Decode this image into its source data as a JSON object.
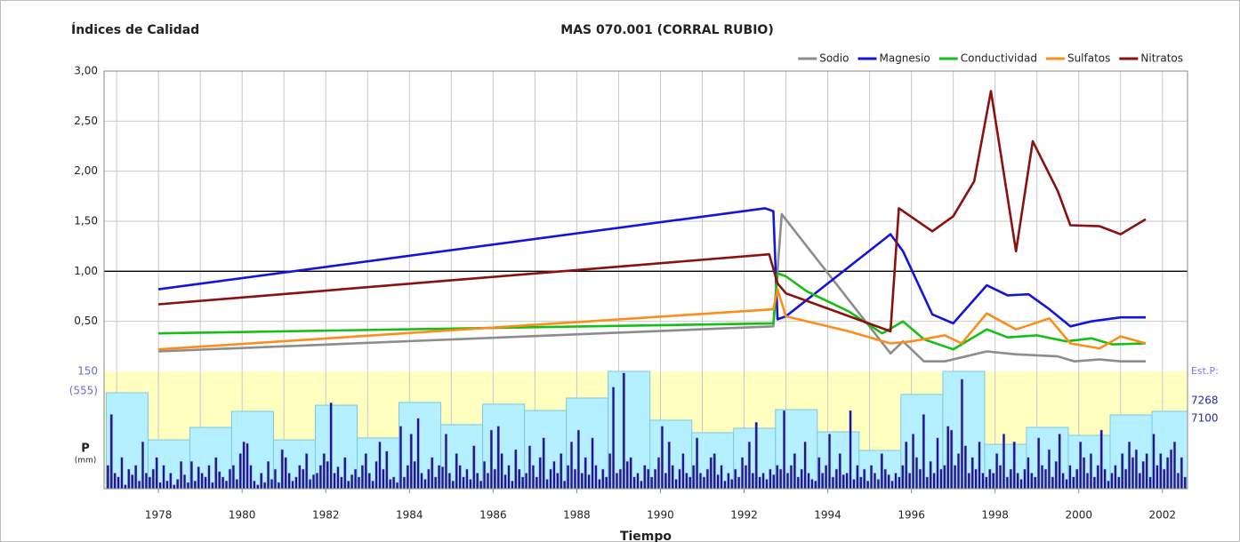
{
  "chart_data": {
    "type": "line",
    "left_title": "Índices de Calidad",
    "title": "MAS 070.001 (CORRAL RUBIO)",
    "x_label": "Tiempo",
    "xlim": [
      1976.7,
      2002.6
    ],
    "xticks": [
      1978,
      1980,
      1982,
      1984,
      1986,
      1988,
      1990,
      1992,
      1994,
      1996,
      1998,
      2000,
      2002
    ],
    "minor_xticks": [
      1977,
      1978,
      1979,
      1980,
      1981,
      1982,
      1983,
      1984,
      1985,
      1986,
      1987,
      1988,
      1989,
      1990,
      1991,
      1992,
      1993,
      1994,
      1995,
      1996,
      1997,
      1998,
      1999,
      2000,
      2001,
      2002
    ],
    "ylim": [
      0,
      3
    ],
    "yticks": [
      {
        "value": 0.5,
        "label": "0,50"
      },
      {
        "value": 1.0,
        "label": "1,00"
      },
      {
        "value": 1.5,
        "label": "1,50"
      },
      {
        "value": 2.0,
        "label": "2,00"
      },
      {
        "value": 2.5,
        "label": "2,50"
      },
      {
        "value": 3.0,
        "label": "3,00"
      }
    ],
    "reference_line": 1.0,
    "grid": true,
    "legend": "top-right",
    "series": [
      {
        "name": "Sodio",
        "color": "#8c8c8c",
        "x": [
          1978.0,
          1992.7,
          1992.9,
          1995.5,
          1995.8,
          1996.3,
          1996.8,
          1997.8,
          1998.5,
          1999.5,
          1999.9,
          2000.5,
          2001.0,
          2001.6
        ],
        "values": [
          0.2,
          0.45,
          1.57,
          0.18,
          0.3,
          0.1,
          0.1,
          0.2,
          0.17,
          0.15,
          0.1,
          0.12,
          0.1,
          0.1
        ]
      },
      {
        "name": "Magnesio",
        "color": "#1414e0",
        "x": [
          1978.0,
          1992.5,
          1992.7,
          1992.8,
          1993.0,
          1995.5,
          1995.8,
          1996.5,
          1997.0,
          1997.8,
          1998.3,
          1998.8,
          1999.3,
          1999.8,
          2000.3,
          2001.0,
          2001.6
        ],
        "values": [
          0.82,
          1.63,
          1.6,
          0.52,
          0.55,
          1.37,
          1.2,
          0.57,
          0.48,
          0.86,
          0.76,
          0.77,
          0.62,
          0.45,
          0.5,
          0.54,
          0.54
        ]
      },
      {
        "name": "Conductividad",
        "color": "#14c014",
        "x": [
          1978.0,
          1992.7,
          1992.8,
          1993.0,
          1993.5,
          1994.5,
          1995.3,
          1995.8,
          1996.3,
          1997.0,
          1997.8,
          1998.3,
          1999.0,
          1999.7,
          2000.3,
          2000.8,
          2001.6
        ],
        "values": [
          0.38,
          0.48,
          0.98,
          0.95,
          0.8,
          0.6,
          0.38,
          0.5,
          0.32,
          0.22,
          0.42,
          0.34,
          0.36,
          0.3,
          0.33,
          0.27,
          0.28
        ]
      },
      {
        "name": "Sulfatos",
        "color": "#ff8c1a",
        "x": [
          1978.0,
          1992.7,
          1992.8,
          1993.0,
          1994.5,
          1995.5,
          1996.0,
          1996.8,
          1997.2,
          1997.8,
          1998.5,
          1999.3,
          1999.8,
          2000.5,
          2001.0,
          2001.6
        ],
        "values": [
          0.22,
          0.62,
          0.82,
          0.55,
          0.4,
          0.28,
          0.3,
          0.36,
          0.28,
          0.58,
          0.42,
          0.53,
          0.28,
          0.23,
          0.35,
          0.28
        ]
      },
      {
        "name": "Nitratos",
        "color": "#8b1010",
        "x": [
          1978.0,
          1992.6,
          1992.8,
          1993.0,
          1995.5,
          1995.7,
          1996.5,
          1997.0,
          1997.5,
          1997.9,
          1998.5,
          1998.9,
          1999.5,
          1999.8,
          2000.5,
          2001.0,
          2001.6
        ],
        "values": [
          0.67,
          1.17,
          0.88,
          0.78,
          0.4,
          1.63,
          1.4,
          1.55,
          1.9,
          2.8,
          1.2,
          2.3,
          1.8,
          1.46,
          1.45,
          1.37,
          1.52
        ]
      }
    ],
    "precipitation": {
      "label": "P",
      "unit": "(mm)",
      "monthly_ylim": [
        0,
        150
      ],
      "monthly_yticks": [
        150
      ],
      "annual_ylim": [
        0,
        555
      ],
      "annual_yticks": [
        {
          "value": 555,
          "label": "(555)"
        }
      ],
      "est_label": "Est.P:",
      "est_values": [
        7268,
        7100
      ],
      "bins": [
        1976.75,
        1977.75,
        1978.75,
        1979.75,
        1980.75,
        1981.75,
        1982.75,
        1983.75,
        1984.75,
        1985.75,
        1986.75,
        1987.75,
        1988.75,
        1989.75,
        1990.75,
        1991.75,
        1992.75,
        1993.75,
        1994.75,
        1995.75,
        1996.75,
        1997.75,
        1998.75,
        1999.75,
        2000.75,
        2001.75,
        2002.75
      ],
      "annual": [
        454,
        231,
        290,
        366,
        231,
        395,
        240,
        408,
        303,
        400,
        370,
        429,
        555,
        324,
        265,
        286,
        374,
        269,
        181,
        446,
        555,
        210,
        290,
        252,
        349,
        366
      ],
      "monthly": [
        [
          30,
          95,
          20,
          15,
          40,
          5,
          25,
          18,
          30,
          10,
          60,
          20
        ],
        [
          15,
          25,
          40,
          8,
          30,
          10,
          20,
          5,
          12,
          35,
          18,
          8
        ],
        [
          35,
          10,
          28,
          20,
          15,
          30,
          8,
          40,
          22,
          15,
          10,
          25
        ],
        [
          30,
          12,
          45,
          60,
          58,
          30,
          10,
          5,
          20,
          8,
          35,
          12
        ],
        [
          25,
          8,
          50,
          40,
          20,
          10,
          15,
          30,
          25,
          45,
          12,
          18
        ],
        [
          20,
          30,
          45,
          35,
          110,
          20,
          28,
          15,
          40,
          10,
          18,
          25
        ],
        [
          15,
          30,
          45,
          20,
          10,
          35,
          60,
          25,
          48,
          12,
          15,
          8
        ],
        [
          80,
          15,
          30,
          70,
          35,
          90,
          20,
          12,
          25,
          40,
          15,
          30
        ],
        [
          28,
          70,
          20,
          10,
          45,
          30,
          15,
          25,
          12,
          55,
          20,
          10
        ],
        [
          35,
          20,
          75,
          25,
          80,
          45,
          18,
          30,
          10,
          50,
          25,
          15
        ],
        [
          20,
          55,
          30,
          15,
          40,
          65,
          12,
          25,
          35,
          20,
          45,
          10
        ],
        [
          30,
          60,
          25,
          75,
          20,
          40,
          18,
          65,
          30,
          12,
          25,
          15
        ],
        [
          45,
          130,
          20,
          25,
          148,
          35,
          40,
          15,
          20,
          10,
          30,
          25
        ],
        [
          15,
          25,
          40,
          80,
          20,
          60,
          30,
          12,
          25,
          45,
          20,
          15
        ],
        [
          30,
          65,
          20,
          15,
          25,
          40,
          45,
          18,
          30,
          10,
          20,
          12
        ],
        [
          25,
          15,
          40,
          30,
          60,
          20,
          85,
          15,
          20,
          12,
          25,
          18
        ],
        [
          30,
          25,
          100,
          20,
          30,
          45,
          15,
          25,
          60,
          20,
          12,
          10
        ],
        [
          40,
          20,
          30,
          70,
          15,
          25,
          45,
          18,
          20,
          100,
          12,
          30
        ],
        [
          15,
          25,
          10,
          30,
          20,
          12,
          45,
          25,
          18,
          10,
          20,
          15
        ],
        [
          30,
          60,
          20,
          70,
          40,
          25,
          95,
          15,
          35,
          20,
          65,
          25
        ],
        [
          30,
          80,
          75,
          30,
          45,
          140,
          55,
          20,
          40,
          25,
          60,
          20
        ],
        [
          15,
          25,
          20,
          45,
          30,
          70,
          15,
          25,
          60,
          20,
          12,
          25
        ],
        [
          40,
          20,
          15,
          65,
          30,
          25,
          50,
          15,
          35,
          70,
          20,
          12
        ],
        [
          30,
          15,
          25,
          60,
          40,
          20,
          45,
          15,
          30,
          75,
          25,
          10
        ],
        [
          20,
          30,
          15,
          45,
          25,
          60,
          40,
          50,
          20,
          35,
          45,
          15
        ],
        [
          70,
          30,
          45,
          25,
          40,
          50,
          60,
          20,
          40,
          15,
          35,
          20
        ]
      ]
    }
  }
}
